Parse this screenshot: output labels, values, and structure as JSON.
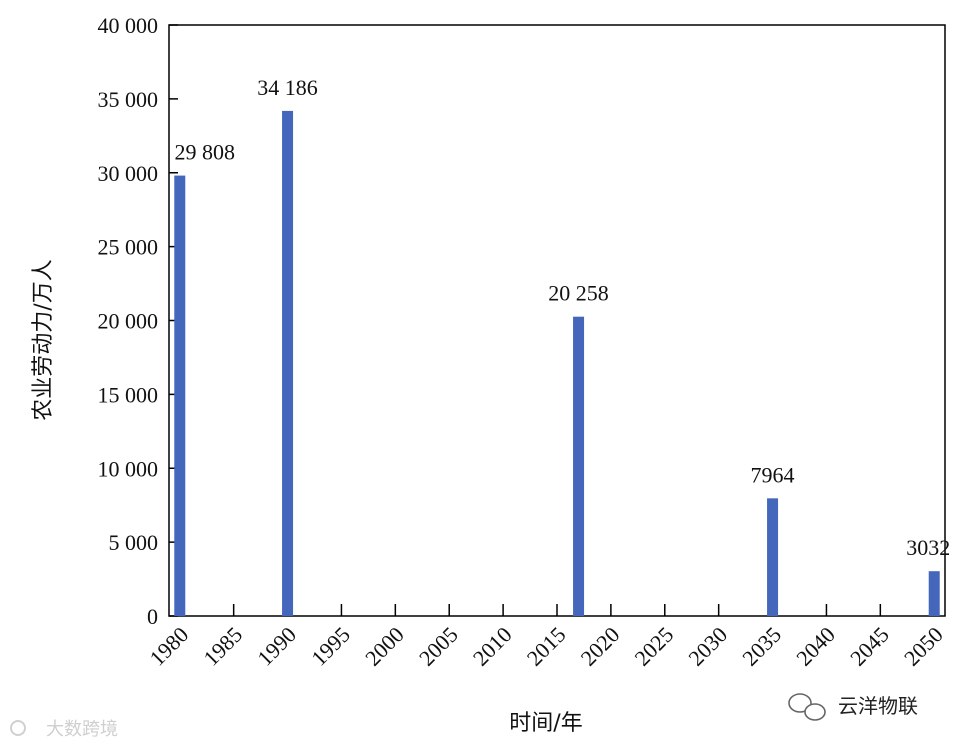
{
  "chart_data": {
    "type": "bar",
    "xlabel": "时间/年",
    "ylabel": "农业劳动力/万人",
    "ylim": [
      0,
      40000
    ],
    "y_ticks": [
      0,
      5000,
      10000,
      15000,
      20000,
      25000,
      30000,
      35000,
      40000
    ],
    "y_tick_labels": [
      "0",
      "5 000",
      "10 000",
      "15 000",
      "20 000",
      "25 000",
      "30 000",
      "35 000",
      "40 000"
    ],
    "x_ticks": [
      "1980",
      "1985",
      "1990",
      "1995",
      "2000",
      "2005",
      "2010",
      "2015",
      "2020",
      "2025",
      "2030",
      "2035",
      "2040",
      "2045",
      "2050"
    ],
    "bars": [
      {
        "x": 1980,
        "value": 29808,
        "label": "29 808"
      },
      {
        "x": 1990,
        "value": 34186,
        "label": "34 186"
      },
      {
        "x": 2017,
        "value": 20258,
        "label": "20 258"
      },
      {
        "x": 2035,
        "value": 7964,
        "label": "7964"
      },
      {
        "x": 2050,
        "value": 3032,
        "label": "3032"
      }
    ],
    "bar_color": "#4466bb",
    "grid": false
  },
  "watermarks": {
    "left": "大数跨境",
    "right": "云洋物联"
  }
}
